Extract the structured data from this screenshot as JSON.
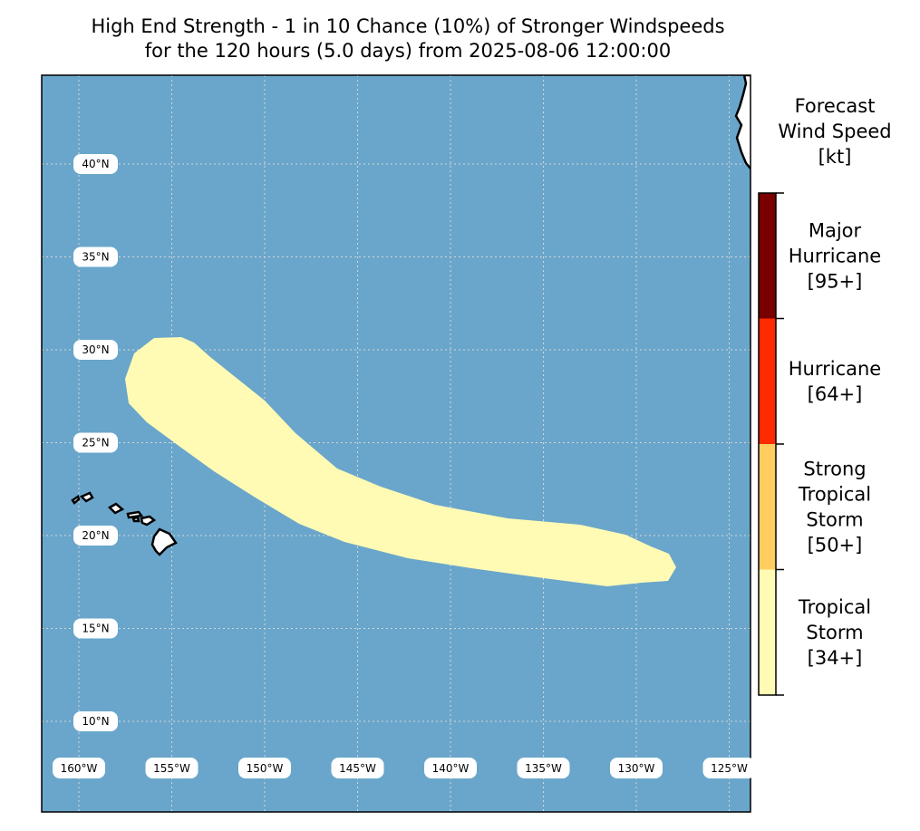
{
  "title": {
    "line1": "High End Strength - 1 in 10 Chance (10%) of Stronger Windspeeds",
    "line2": "for the 120 hours (5.0 days) from 2025-08-06 12:00:00"
  },
  "colors": {
    "ocean": "#6aa6cb",
    "land": "#ffffff",
    "swath": "#fffbb4",
    "tropical_storm": "#fffbb4",
    "strong_tropical_storm": "#ffcd5f",
    "hurricane": "#ff2a00",
    "major_hurricane": "#7a0000"
  },
  "map": {
    "lon_range": [
      -162,
      -124
    ],
    "lat_range": [
      5,
      45
    ],
    "lat_labels": [
      "40°N",
      "35°N",
      "30°N",
      "25°N",
      "20°N",
      "15°N",
      "10°N"
    ],
    "lon_labels": [
      "160°W",
      "155°W",
      "150°W",
      "145°W",
      "140°W",
      "135°W",
      "130°W",
      "125°W"
    ],
    "gridlines": true
  },
  "legend": {
    "title_lines": [
      "Forecast",
      "Wind Speed",
      "[kt]"
    ],
    "categories": [
      {
        "lines": [
          "Major",
          "Hurricane",
          "[95+]"
        ],
        "color_key": "major_hurricane"
      },
      {
        "lines": [
          "Hurricane",
          "[64+]"
        ],
        "color_key": "hurricane"
      },
      {
        "lines": [
          "Strong",
          "Tropical",
          "Storm",
          "[50+]"
        ],
        "color_key": "strong_tropical_storm"
      },
      {
        "lines": [
          "Tropical",
          "Storm",
          "[34+]"
        ],
        "color_key": "tropical_storm"
      }
    ]
  }
}
